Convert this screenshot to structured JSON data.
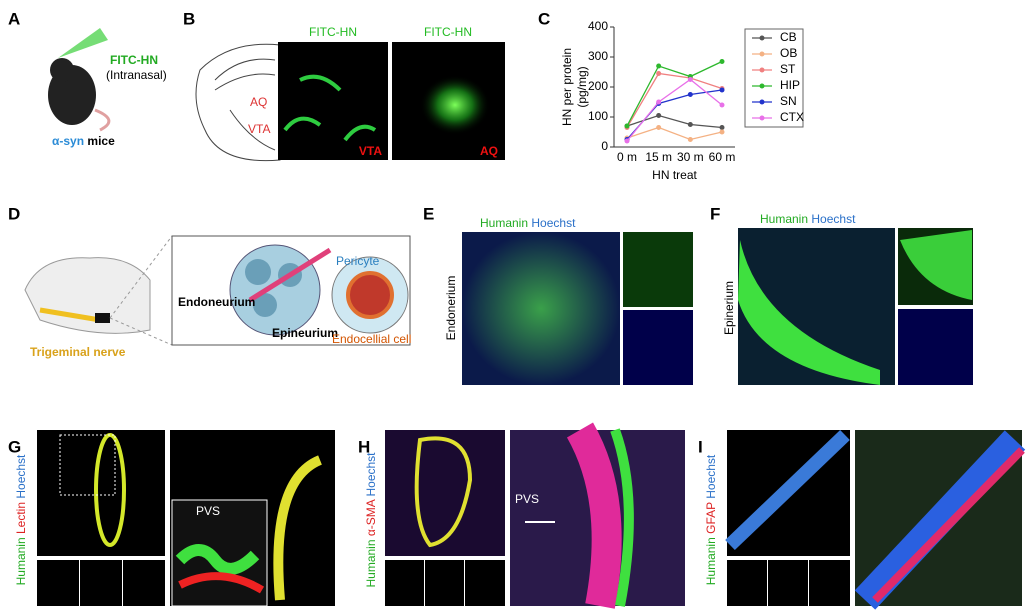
{
  "panels": {
    "a": {
      "label": "A",
      "agent": "FITC-HN",
      "route": "(Intranasal)",
      "model": "α-syn",
      "model_suffix": "mice"
    },
    "b": {
      "label": "B",
      "stain_1": "FITC-HN",
      "stain_2": "FITC-HN",
      "atlas_aq": "AQ",
      "atlas_vta": "VTA",
      "region_1": "VTA",
      "region_2": "AQ"
    },
    "c": {
      "label": "C"
    },
    "d": {
      "label": "D",
      "nerve": "Trigeminal nerve",
      "endoneurium": "Endoneurium",
      "epineurium": "Epineurium",
      "pericyte": "Pericyte",
      "endothelial": "Endocellial cell"
    },
    "e": {
      "label": "E",
      "stain_green": "Humanin",
      "stain_blue": "Hoechst",
      "side": "Endonerium"
    },
    "f": {
      "label": "F",
      "stain_green": "Humanin",
      "stain_blue": "Hoechst",
      "side": "Epinerium"
    },
    "g": {
      "label": "G",
      "stain_green": "Humanin",
      "stain_red": "Lectin",
      "stain_blue": "Hoechst",
      "callout": "PVS"
    },
    "h": {
      "label": "H",
      "stain_green": "Humanin",
      "stain_red": "α-SMA",
      "stain_blue": "Hoechst",
      "callout": "PVS"
    },
    "i": {
      "label": "I",
      "stain_green": "Humanin",
      "stain_red": "GFAP",
      "stain_blue": "Hoechst"
    }
  },
  "chart_data": {
    "type": "line",
    "y_label_1": "HN per protein",
    "y_label_2": "(pg/mg)",
    "x_label": "HN treat",
    "categories": [
      "0 m",
      "15 m",
      "30 m",
      "60 m"
    ],
    "ylim": [
      0,
      400
    ],
    "yticks": [
      0,
      100,
      200,
      300,
      400
    ],
    "series": [
      {
        "name": "CB",
        "color": "#555555",
        "values": [
          70,
          105,
          75,
          65
        ]
      },
      {
        "name": "OB",
        "color": "#f4b183",
        "values": [
          30,
          65,
          25,
          50
        ]
      },
      {
        "name": "ST",
        "color": "#f08080",
        "values": [
          65,
          245,
          230,
          195
        ]
      },
      {
        "name": "HIP",
        "color": "#2db82d",
        "values": [
          70,
          270,
          235,
          285
        ]
      },
      {
        "name": "SN",
        "color": "#2233cc",
        "values": [
          25,
          145,
          175,
          190
        ]
      },
      {
        "name": "CTX",
        "color": "#e870e8",
        "values": [
          20,
          150,
          225,
          140
        ]
      }
    ]
  }
}
